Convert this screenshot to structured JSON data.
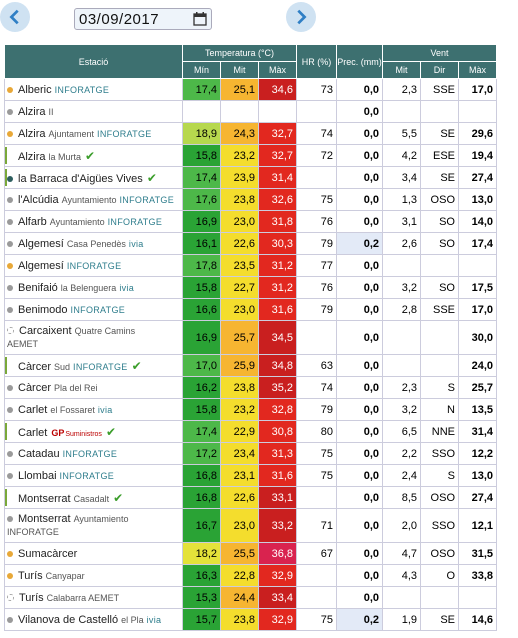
{
  "toolbar": {
    "date": "03/09/2017",
    "prev_icon": "chevron-left-icon",
    "next_icon": "chevron-right-icon",
    "calendar_icon": "calendar-icon"
  },
  "header": {
    "estacio": "Estació",
    "temperatura": "Temperatura (°C)",
    "hr": "HR (%)",
    "prec": "Prec. (mm)",
    "vent": "Vent",
    "min": "Mín",
    "mit": "Mit",
    "max": "Màx",
    "vent_mit": "Mit",
    "vent_dir": "Dir",
    "vent_max": "Màx"
  },
  "colors": {
    "header_bg": "#3d7070",
    "accent": "#2e7d8c"
  },
  "rows": [
    {
      "name": "Alberic",
      "sub": "",
      "brand": "INFORATGE",
      "check": false,
      "dot": "orange",
      "min": "17,4",
      "mit": "25,1",
      "max": "34,6",
      "hr": "73",
      "prec": "0,0",
      "vmit": "2,3",
      "vdir": "SSE",
      "vmax": "17,0"
    },
    {
      "name": "Alzira",
      "sub": "II",
      "brand": "",
      "check": false,
      "dot": "grey",
      "min": "",
      "mit": "",
      "max": "",
      "hr": "",
      "prec": "0,0",
      "vmit": "",
      "vdir": "",
      "vmax": ""
    },
    {
      "name": "Alzira",
      "sub": "Ajuntament",
      "brand": "INFORATGE",
      "check": false,
      "dot": "orange",
      "min": "18,9",
      "mit": "24,3",
      "max": "32,7",
      "hr": "74",
      "prec": "0,0",
      "vmit": "5,5",
      "vdir": "SE",
      "vmax": "29,6"
    },
    {
      "name": "Alzira",
      "sub": "la Murta",
      "brand": "",
      "check": true,
      "dot": "",
      "min": "15,8",
      "mit": "23,2",
      "max": "32,7",
      "hr": "72",
      "prec": "0,0",
      "vmit": "4,2",
      "vdir": "ESE",
      "vmax": "19,4"
    },
    {
      "name": "la Barraca d'Aigües Vives",
      "sub": "",
      "brand": "",
      "check": true,
      "dot": "dark",
      "min": "17,4",
      "mit": "23,9",
      "max": "31,4",
      "hr": "",
      "prec": "0,0",
      "vmit": "3,4",
      "vdir": "SE",
      "vmax": "27,4"
    },
    {
      "name": "l'Alcúdia",
      "sub": "Ayuntamiento",
      "brand": "INFORATGE",
      "check": false,
      "dot": "grey",
      "min": "17,6",
      "mit": "23,8",
      "max": "32,6",
      "hr": "75",
      "prec": "0,0",
      "vmit": "1,3",
      "vdir": "OSO",
      "vmax": "13,0"
    },
    {
      "name": "Alfarb",
      "sub": "Ayuntamiento",
      "brand": "INFORATGE",
      "check": false,
      "dot": "grey",
      "min": "16,9",
      "mit": "23,0",
      "max": "31,8",
      "hr": "76",
      "prec": "0,0",
      "vmit": "3,1",
      "vdir": "SO",
      "vmax": "14,0"
    },
    {
      "name": "Algemesí",
      "sub": "Casa Penedès",
      "brand": "ivia",
      "check": false,
      "dot": "grey",
      "min": "16,1",
      "mit": "22,6",
      "max": "30,3",
      "hr": "79",
      "prec": "0,2",
      "vmit": "2,6",
      "vdir": "SO",
      "vmax": "17,4"
    },
    {
      "name": "Algemesí",
      "sub": "",
      "brand": "INFORATGE",
      "check": false,
      "dot": "orange",
      "min": "17,8",
      "mit": "23,5",
      "max": "31,2",
      "hr": "77",
      "prec": "0,0",
      "vmit": "",
      "vdir": "",
      "vmax": ""
    },
    {
      "name": "Benifaió",
      "sub": "la Belenguera",
      "brand": "ivia",
      "check": false,
      "dot": "grey",
      "min": "15,8",
      "mit": "22,7",
      "max": "31,2",
      "hr": "76",
      "prec": "0,0",
      "vmit": "3,2",
      "vdir": "SO",
      "vmax": "17,5"
    },
    {
      "name": "Benimodo",
      "sub": "",
      "brand": "INFORATGE",
      "check": false,
      "dot": "grey",
      "min": "16,6",
      "mit": "23,0",
      "max": "31,6",
      "hr": "79",
      "prec": "0,0",
      "vmit": "2,8",
      "vdir": "SSE",
      "vmax": "17,0"
    },
    {
      "name": "Carcaixent",
      "sub": "Quatre Camins",
      "sub2": "AEMET",
      "brand": "",
      "check": false,
      "dot": "ring",
      "tall": true,
      "min": "16,9",
      "mit": "25,7",
      "max": "34,5",
      "hr": "",
      "prec": "0,0",
      "vmit": "",
      "vdir": "",
      "vmax": "30,0"
    },
    {
      "name": "Càrcer",
      "sub": "Sud",
      "brand": "INFORATGE",
      "check": true,
      "dot": "",
      "min": "17,0",
      "mit": "25,9",
      "max": "34,8",
      "hr": "63",
      "prec": "0,0",
      "vmit": "",
      "vdir": "",
      "vmax": "24,0"
    },
    {
      "name": "Càrcer",
      "sub": "Pla del Rei",
      "brand": "",
      "check": false,
      "dot": "grey",
      "min": "16,2",
      "mit": "23,8",
      "max": "35,2",
      "hr": "74",
      "prec": "0,0",
      "vmit": "2,3",
      "vdir": "S",
      "vmax": "25,7"
    },
    {
      "name": "Carlet",
      "sub": "el Fossaret",
      "brand": "ivia",
      "check": false,
      "dot": "grey",
      "min": "15,8",
      "mit": "23,2",
      "max": "32,8",
      "hr": "79",
      "prec": "0,0",
      "vmit": "3,2",
      "vdir": "N",
      "vmax": "13,5"
    },
    {
      "name": "Carlet",
      "sub": "",
      "brand": "GP",
      "brand2": "Suministros",
      "check": true,
      "dot": "",
      "min": "17,4",
      "mit": "22,9",
      "max": "30,8",
      "hr": "80",
      "prec": "0,0",
      "vmit": "6,5",
      "vdir": "NNE",
      "vmax": "31,4"
    },
    {
      "name": "Catadau",
      "sub": "",
      "brand": "INFORATGE",
      "check": false,
      "dot": "grey",
      "min": "17,2",
      "mit": "23,4",
      "max": "31,3",
      "hr": "75",
      "prec": "0,0",
      "vmit": "2,2",
      "vdir": "SSO",
      "vmax": "12,2"
    },
    {
      "name": "Llombai",
      "sub": "",
      "brand": "INFORATGE",
      "check": false,
      "dot": "grey",
      "min": "16,8",
      "mit": "23,1",
      "max": "31,6",
      "hr": "75",
      "prec": "0,0",
      "vmit": "2,4",
      "vdir": "S",
      "vmax": "13,0"
    },
    {
      "name": "Montserrat",
      "sub": "Casadalt",
      "brand": "",
      "check": true,
      "dot": "",
      "min": "16,8",
      "mit": "22,6",
      "max": "33,1",
      "hr": "",
      "prec": "0,0",
      "vmit": "8,5",
      "vdir": "OSO",
      "vmax": "27,4"
    },
    {
      "name": "Montserrat",
      "sub": "Ayuntamiento",
      "sub2": "INFORATGE",
      "brand": "",
      "check": false,
      "dot": "grey",
      "tall": true,
      "min": "16,7",
      "mit": "23,0",
      "max": "33,2",
      "hr": "71",
      "prec": "0,0",
      "vmit": "2,0",
      "vdir": "SSO",
      "vmax": "12,1"
    },
    {
      "name": "Sumacàrcer",
      "sub": "",
      "brand": "",
      "check": false,
      "dot": "orange",
      "min": "18,2",
      "mit": "25,5",
      "max": "36,8",
      "hr": "67",
      "prec": "0,0",
      "vmit": "4,7",
      "vdir": "OSO",
      "vmax": "31,5"
    },
    {
      "name": "Turís",
      "sub": "Canyapar",
      "brand": "",
      "check": false,
      "dot": "orange",
      "min": "16,3",
      "mit": "22,8",
      "max": "32,9",
      "hr": "",
      "prec": "0,0",
      "vmit": "4,3",
      "vdir": "O",
      "vmax": "33,8"
    },
    {
      "name": "Turís",
      "sub": "Calabarra AEMET",
      "brand": "",
      "check": false,
      "dot": "ring",
      "min": "15,3",
      "mit": "24,4",
      "max": "33,4",
      "hr": "",
      "prec": "0,0",
      "vmit": "",
      "vdir": "",
      "vmax": ""
    },
    {
      "name": "Vilanova de Castelló",
      "sub": "el Pla",
      "brand": "ivia",
      "check": false,
      "dot": "grey",
      "min": "15,7",
      "mit": "23,8",
      "max": "32,9",
      "hr": "75",
      "prec": "0,2",
      "vmit": "1,9",
      "vdir": "SE",
      "vmax": "14,6"
    }
  ]
}
